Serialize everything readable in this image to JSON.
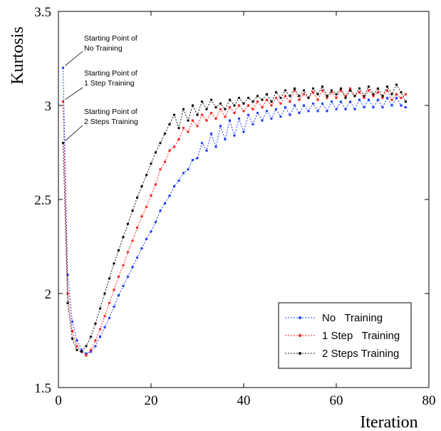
{
  "chart_data": {
    "type": "line",
    "title": "",
    "xlabel": "Iteration",
    "ylabel": "Kurtosis",
    "xlim": [
      0,
      80
    ],
    "ylim": [
      1.5,
      3.5
    ],
    "xticks": [
      0,
      20,
      40,
      60,
      80
    ],
    "yticks": [
      1.5,
      2,
      2.5,
      3,
      3.5
    ],
    "xtick_labels": [
      "0",
      "20",
      "40",
      "60",
      "80"
    ],
    "ytick_labels": [
      "1.5",
      "2",
      "2.5",
      "3",
      "3.5"
    ],
    "grid": false,
    "legend_position": "bottom-right",
    "annotations": [
      {
        "lines": [
          "Starting Point of",
          "No Training"
        ],
        "target": {
          "x": 1,
          "y": 3.2
        }
      },
      {
        "lines": [
          "Starting Point of",
          "1 Step Training"
        ],
        "target": {
          "x": 1,
          "y": 3.02
        }
      },
      {
        "lines": [
          "Starting Point of",
          "2 Steps Training"
        ],
        "target": {
          "x": 1,
          "y": 2.8
        }
      }
    ],
    "series": [
      {
        "name": "No   Training",
        "color": "#1f3fff",
        "x": [
          1,
          2,
          3,
          4,
          5,
          6,
          7,
          8,
          9,
          10,
          11,
          12,
          13,
          14,
          15,
          16,
          17,
          18,
          19,
          20,
          21,
          22,
          23,
          24,
          25,
          26,
          27,
          28,
          29,
          30,
          31,
          32,
          33,
          34,
          35,
          36,
          37,
          38,
          39,
          40,
          41,
          42,
          43,
          44,
          45,
          46,
          47,
          48,
          49,
          50,
          51,
          52,
          53,
          54,
          55,
          56,
          57,
          58,
          59,
          60,
          61,
          62,
          63,
          64,
          65,
          66,
          67,
          68,
          69,
          70,
          71,
          72,
          73,
          74,
          75
        ],
        "values": [
          3.2,
          2.1,
          1.85,
          1.75,
          1.7,
          1.68,
          1.69,
          1.72,
          1.77,
          1.82,
          1.87,
          1.93,
          1.99,
          2.04,
          2.09,
          2.14,
          2.19,
          2.24,
          2.29,
          2.33,
          2.38,
          2.44,
          2.48,
          2.52,
          2.57,
          2.6,
          2.64,
          2.66,
          2.71,
          2.72,
          2.8,
          2.76,
          2.85,
          2.78,
          2.89,
          2.82,
          2.92,
          2.84,
          2.93,
          2.86,
          2.95,
          2.9,
          2.96,
          2.92,
          2.97,
          2.93,
          2.98,
          2.94,
          2.99,
          2.95,
          3.0,
          2.96,
          3.0,
          2.97,
          3.01,
          2.97,
          3.01,
          2.97,
          3.02,
          2.98,
          3.02,
          2.98,
          3.02,
          2.98,
          3.03,
          2.99,
          3.03,
          2.99,
          3.03,
          2.99,
          3.04,
          3.0,
          3.04,
          3.0,
          2.99
        ]
      },
      {
        "name": "1 Step   Training",
        "color": "#ff2020",
        "x": [
          1,
          2,
          3,
          4,
          5,
          6,
          7,
          8,
          9,
          10,
          11,
          12,
          13,
          14,
          15,
          16,
          17,
          18,
          19,
          20,
          21,
          22,
          23,
          24,
          25,
          26,
          27,
          28,
          29,
          30,
          31,
          32,
          33,
          34,
          35,
          36,
          37,
          38,
          39,
          40,
          41,
          42,
          43,
          44,
          45,
          46,
          47,
          48,
          49,
          50,
          51,
          52,
          53,
          54,
          55,
          56,
          57,
          58,
          59,
          60,
          61,
          62,
          63,
          64,
          65,
          66,
          67,
          68,
          69,
          70,
          71,
          72,
          73,
          74,
          75
        ],
        "values": [
          3.02,
          2.0,
          1.8,
          1.72,
          1.69,
          1.67,
          1.7,
          1.75,
          1.81,
          1.88,
          1.95,
          2.02,
          2.09,
          2.15,
          2.22,
          2.28,
          2.35,
          2.41,
          2.46,
          2.52,
          2.58,
          2.66,
          2.7,
          2.76,
          2.78,
          2.82,
          2.88,
          2.86,
          2.92,
          2.89,
          2.95,
          2.92,
          2.96,
          2.93,
          2.98,
          2.94,
          2.99,
          2.96,
          3.0,
          2.97,
          3.0,
          2.98,
          3.02,
          2.99,
          3.03,
          3.0,
          3.04,
          3.01,
          3.05,
          3.02,
          3.08,
          3.03,
          3.06,
          3.04,
          3.07,
          3.03,
          3.08,
          3.04,
          3.07,
          3.04,
          3.08,
          3.05,
          3.09,
          3.05,
          3.07,
          3.04,
          3.08,
          3.05,
          3.07,
          3.04,
          3.08,
          3.03,
          3.06,
          3.04,
          3.06
        ]
      },
      {
        "name": "2 Steps Training",
        "color": "#111111",
        "x": [
          1,
          2,
          3,
          4,
          5,
          6,
          7,
          8,
          9,
          10,
          11,
          12,
          13,
          14,
          15,
          16,
          17,
          18,
          19,
          20,
          21,
          22,
          23,
          24,
          25,
          26,
          27,
          28,
          29,
          30,
          31,
          32,
          33,
          34,
          35,
          36,
          37,
          38,
          39,
          40,
          41,
          42,
          43,
          44,
          45,
          46,
          47,
          48,
          49,
          50,
          51,
          52,
          53,
          54,
          55,
          56,
          57,
          58,
          59,
          60,
          61,
          62,
          63,
          64,
          65,
          66,
          67,
          68,
          69,
          70,
          71,
          72,
          73,
          74,
          75
        ],
        "values": [
          2.8,
          1.95,
          1.76,
          1.7,
          1.69,
          1.72,
          1.77,
          1.84,
          1.92,
          2.0,
          2.08,
          2.16,
          2.23,
          2.3,
          2.37,
          2.44,
          2.51,
          2.57,
          2.63,
          2.69,
          2.75,
          2.8,
          2.85,
          2.9,
          2.95,
          2.88,
          2.98,
          2.92,
          3.0,
          2.95,
          3.02,
          2.98,
          3.03,
          2.99,
          3.01,
          2.98,
          3.03,
          3.0,
          3.04,
          3.01,
          3.04,
          3.02,
          3.05,
          3.03,
          3.06,
          3.02,
          3.07,
          3.04,
          3.08,
          3.05,
          3.09,
          3.05,
          3.08,
          3.04,
          3.09,
          3.06,
          3.1,
          3.05,
          3.08,
          3.06,
          3.09,
          3.04,
          3.08,
          3.05,
          3.09,
          3.05,
          3.1,
          3.06,
          3.09,
          3.05,
          3.1,
          3.06,
          3.11,
          3.07,
          3.02
        ]
      }
    ]
  }
}
